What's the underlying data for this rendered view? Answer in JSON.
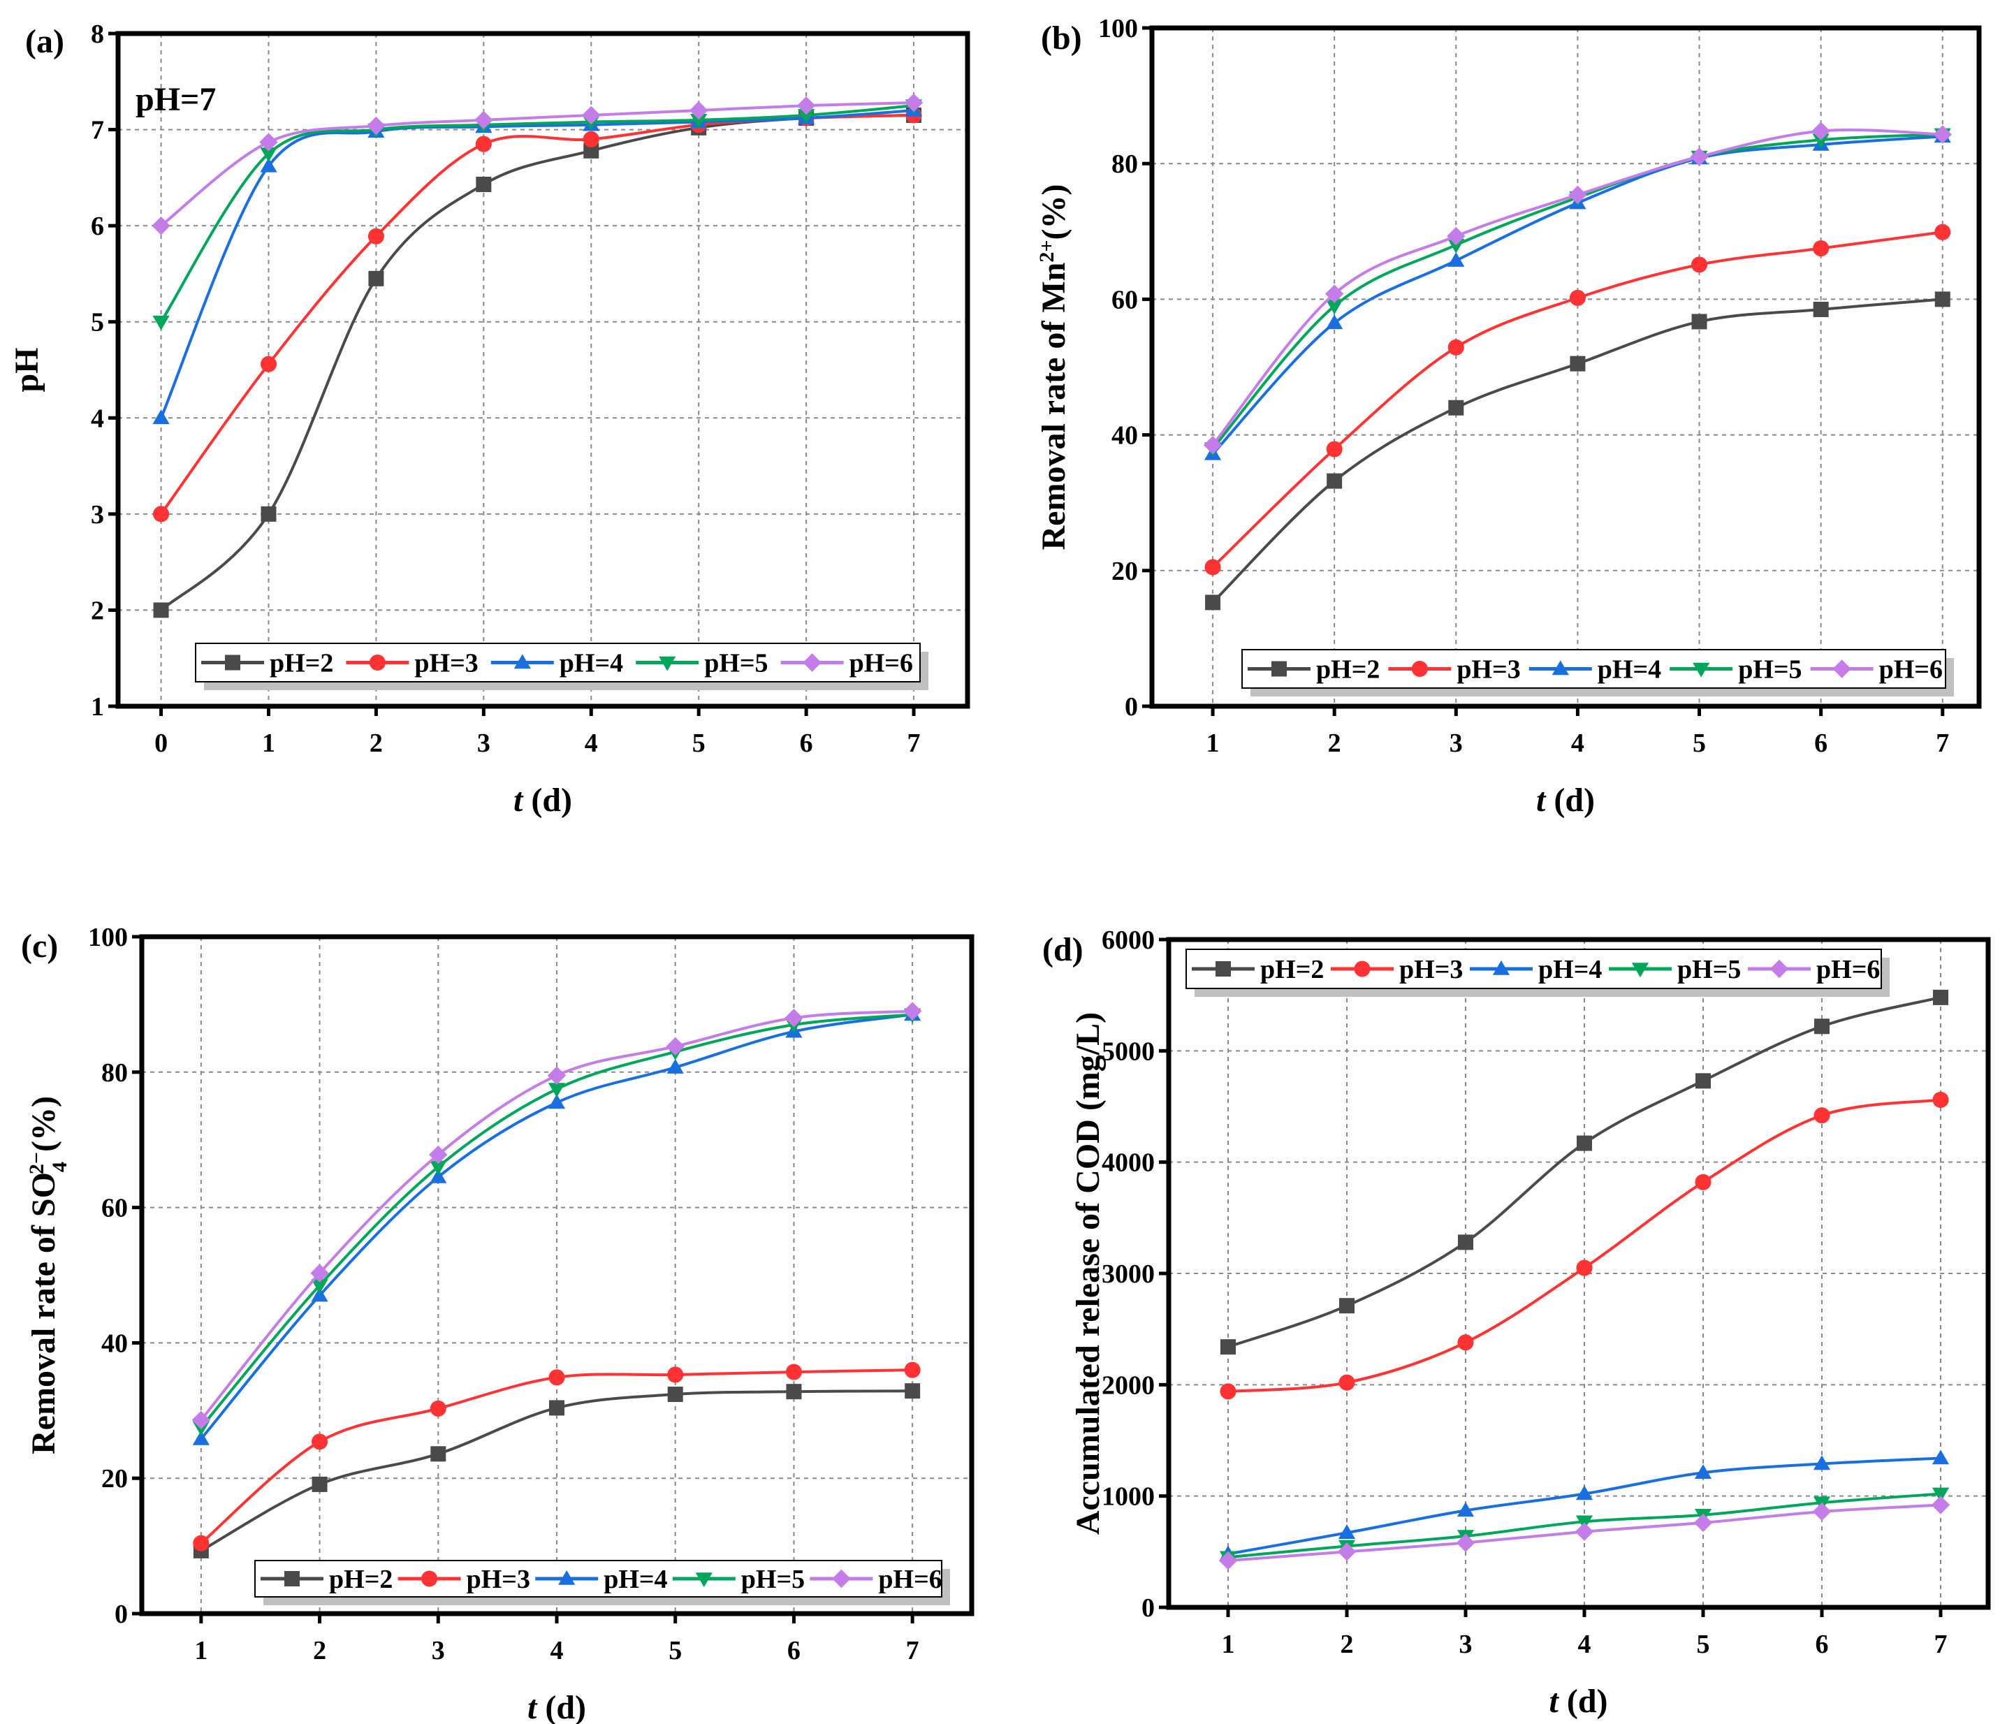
{
  "legend_labels": [
    "pH=2",
    "pH=3",
    "pH=4",
    "pH=5",
    "pH=6"
  ],
  "series_colors": [
    "#4a4a4a",
    "#ff3333",
    "#1a6fe0",
    "#00a65a",
    "#c47de8"
  ],
  "markers": [
    "square",
    "circle",
    "triangle-up",
    "triangle-down",
    "diamond"
  ],
  "chart_data": [
    {
      "panel": "(a)",
      "type": "line",
      "annotation": "pH=7",
      "xlabel_italic": "t",
      "xlabel_rest": " (d)",
      "ylabel_parts": [
        {
          "t": "pH"
        }
      ],
      "xlim": [
        -0.4,
        7.5
      ],
      "ylim": [
        1,
        8
      ],
      "xticks": [
        0,
        1,
        2,
        3,
        4,
        5,
        6,
        7
      ],
      "yticks": [
        1,
        2,
        3,
        4,
        5,
        6,
        7,
        8
      ],
      "x": [
        0,
        1,
        2,
        3,
        4,
        5,
        6,
        7
      ],
      "series": [
        {
          "name": "pH=2",
          "values": [
            2.0,
            3.0,
            5.45,
            6.43,
            6.78,
            7.02,
            7.12,
            7.15
          ]
        },
        {
          "name": "pH=3",
          "values": [
            3.0,
            4.56,
            5.89,
            6.85,
            6.9,
            7.05,
            7.12,
            7.15
          ]
        },
        {
          "name": "pH=4",
          "values": [
            4.0,
            6.62,
            6.98,
            7.03,
            7.05,
            7.08,
            7.12,
            7.2
          ]
        },
        {
          "name": "pH=5",
          "values": [
            5.0,
            6.75,
            7.0,
            7.05,
            7.08,
            7.1,
            7.15,
            7.25
          ]
        },
        {
          "name": "pH=6",
          "values": [
            6.0,
            6.87,
            7.04,
            7.1,
            7.15,
            7.2,
            7.25,
            7.28
          ]
        }
      ],
      "grid": true,
      "legend": "bottom"
    },
    {
      "panel": "(b)",
      "type": "line",
      "xlabel_italic": "t",
      "xlabel_rest": " (d)",
      "ylabel_parts": [
        {
          "t": "Removal rate of Mn"
        },
        {
          "t": "2+",
          "sup": true
        },
        {
          "t": "(%)"
        }
      ],
      "xlim": [
        0.5,
        7.3
      ],
      "ylim": [
        0,
        100
      ],
      "xticks": [
        1,
        2,
        3,
        4,
        5,
        6,
        7
      ],
      "yticks": [
        0,
        20,
        40,
        60,
        80,
        100
      ],
      "x": [
        1,
        2,
        3,
        4,
        5,
        6,
        7
      ],
      "series": [
        {
          "name": "pH=2",
          "values": [
            15.3,
            33.2,
            44.0,
            50.5,
            56.7,
            58.5,
            60.0
          ]
        },
        {
          "name": "pH=3",
          "values": [
            20.5,
            37.9,
            52.9,
            60.2,
            65.1,
            67.5,
            69.9
          ]
        },
        {
          "name": "pH=4",
          "values": [
            37.2,
            56.5,
            65.7,
            74.2,
            80.8,
            82.8,
            84.0
          ]
        },
        {
          "name": "pH=5",
          "values": [
            38.0,
            59.0,
            68.0,
            75.0,
            81.0,
            83.5,
            84.3
          ]
        },
        {
          "name": "pH=6",
          "values": [
            38.5,
            60.8,
            69.3,
            75.4,
            81.0,
            84.8,
            84.3
          ]
        }
      ],
      "grid": true,
      "legend": "bottom"
    },
    {
      "panel": "(c)",
      "type": "line",
      "xlabel_italic": "t",
      "xlabel_rest": " (d)",
      "ylabel_parts": [
        {
          "t": "Removal rate of SO"
        },
        {
          "t": "4",
          "sub": true
        },
        {
          "t": "2−",
          "sup": true
        },
        {
          "t": "(%)"
        }
      ],
      "xlim": [
        0.5,
        7.5
      ],
      "ylim": [
        0,
        100
      ],
      "xticks": [
        1,
        2,
        3,
        4,
        5,
        6,
        7
      ],
      "yticks": [
        0,
        20,
        40,
        60,
        80,
        100
      ],
      "x": [
        1,
        2,
        3,
        4,
        5,
        6,
        7
      ],
      "series": [
        {
          "name": "pH=2",
          "values": [
            9.3,
            19.1,
            23.6,
            30.4,
            32.4,
            32.8,
            32.9
          ]
        },
        {
          "name": "pH=3",
          "values": [
            10.4,
            25.4,
            30.3,
            34.9,
            35.3,
            35.7,
            36.0
          ]
        },
        {
          "name": "pH=4",
          "values": [
            25.8,
            47.0,
            64.5,
            75.5,
            80.7,
            86.0,
            88.5
          ]
        },
        {
          "name": "pH=5",
          "values": [
            27.5,
            48.5,
            66.0,
            77.5,
            83.0,
            87.0,
            88.5
          ]
        },
        {
          "name": "pH=6",
          "values": [
            28.6,
            50.3,
            67.8,
            79.5,
            83.8,
            88.0,
            89.0
          ]
        }
      ],
      "grid": true,
      "legend": "bottom"
    },
    {
      "panel": "(d)",
      "type": "line",
      "xlabel_italic": "t",
      "xlabel_rest": " (d)",
      "ylabel_parts": [
        {
          "t": "Accumulated release of COD (mg/L)"
        }
      ],
      "xlim": [
        0.5,
        7.4
      ],
      "ylim": [
        0,
        6000
      ],
      "xticks": [
        1,
        2,
        3,
        4,
        5,
        6,
        7
      ],
      "yticks": [
        0,
        1000,
        2000,
        3000,
        4000,
        5000,
        6000
      ],
      "x": [
        1,
        2,
        3,
        4,
        5,
        6,
        7
      ],
      "series": [
        {
          "name": "pH=2",
          "values": [
            2340,
            2710,
            3280,
            4170,
            4730,
            5220,
            5480
          ]
        },
        {
          "name": "pH=3",
          "values": [
            1940,
            2020,
            2380,
            3050,
            3820,
            4420,
            4560
          ]
        },
        {
          "name": "pH=4",
          "values": [
            480,
            670,
            870,
            1020,
            1210,
            1290,
            1340
          ]
        },
        {
          "name": "pH=5",
          "values": [
            450,
            550,
            640,
            770,
            830,
            940,
            1020
          ]
        },
        {
          "name": "pH=6",
          "values": [
            420,
            500,
            580,
            680,
            760,
            860,
            920
          ]
        }
      ],
      "grid": true,
      "legend": "top"
    }
  ]
}
